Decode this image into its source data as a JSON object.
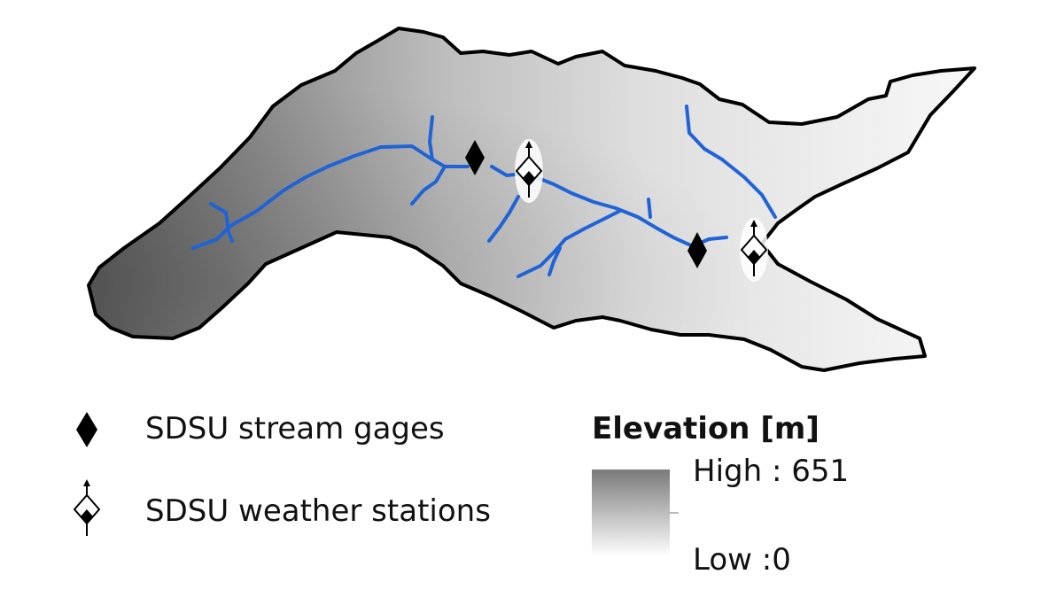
{
  "legend": {
    "stream_gages_label": "SDSU stream gages",
    "weather_stations_label": "SDSU weather stations"
  },
  "elevation": {
    "title": "Elevation [m]",
    "high_label": "High : 651",
    "low_label": "Low :0",
    "high_value": 651,
    "low_value": 0,
    "high_color": "#7a7a7a",
    "low_color": "#ffffff"
  },
  "colors": {
    "stream": "#1f63d6",
    "boundary": "#000000",
    "marker": "#000000"
  },
  "icons": {
    "stream_gage": "black-diamond",
    "weather_station": "split-diamond-with-arrow"
  }
}
